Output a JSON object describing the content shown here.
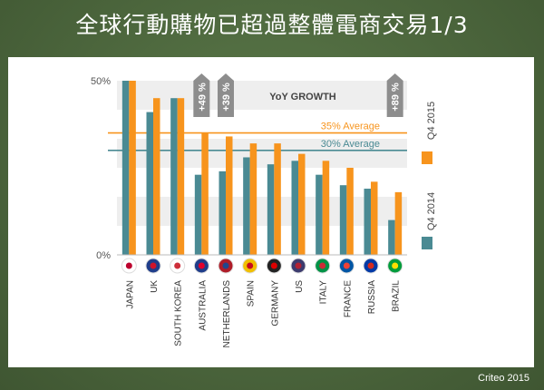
{
  "title": "全球行動購物已超過整體電商交易1/3",
  "credit": "Criteo  2015",
  "chart_data": {
    "type": "bar",
    "categories": [
      "JAPAN",
      "UK",
      "SOUTH KOREA",
      "AUSTRALIA",
      "NETHERLANDS",
      "SPAIN",
      "GERMANY",
      "US",
      "ITALY",
      "FRANCE",
      "RUSSIA",
      "BRAZIL"
    ],
    "series": [
      {
        "name": "Q4 2014",
        "color": "#4a8a93",
        "values": [
          50,
          41,
          45,
          23,
          24,
          28,
          26,
          27,
          23,
          20,
          19,
          10
        ]
      },
      {
        "name": "Q4 2015",
        "color": "#f7941d",
        "values": [
          50,
          45,
          45,
          35,
          34,
          32,
          32,
          29,
          27,
          25,
          21,
          18
        ]
      }
    ],
    "ylim": [
      0,
      50
    ],
    "yticks": [
      {
        "value": 0,
        "label": "0%"
      },
      {
        "value": 50,
        "label": "50%"
      }
    ],
    "reference_lines": [
      {
        "value": 35,
        "label": "35% Average",
        "color": "#f7941d"
      },
      {
        "value": 30,
        "label": "30% Average",
        "color": "#4a8a93"
      }
    ],
    "annotation_header": "YoY GROWTH",
    "growth_callouts": [
      {
        "category": "AUSTRALIA",
        "label": "+49 %"
      },
      {
        "category": "NETHERLANDS",
        "label": "+39 %"
      },
      {
        "category": "BRAZIL",
        "label": "+89 %"
      }
    ],
    "legend_position": "right"
  }
}
